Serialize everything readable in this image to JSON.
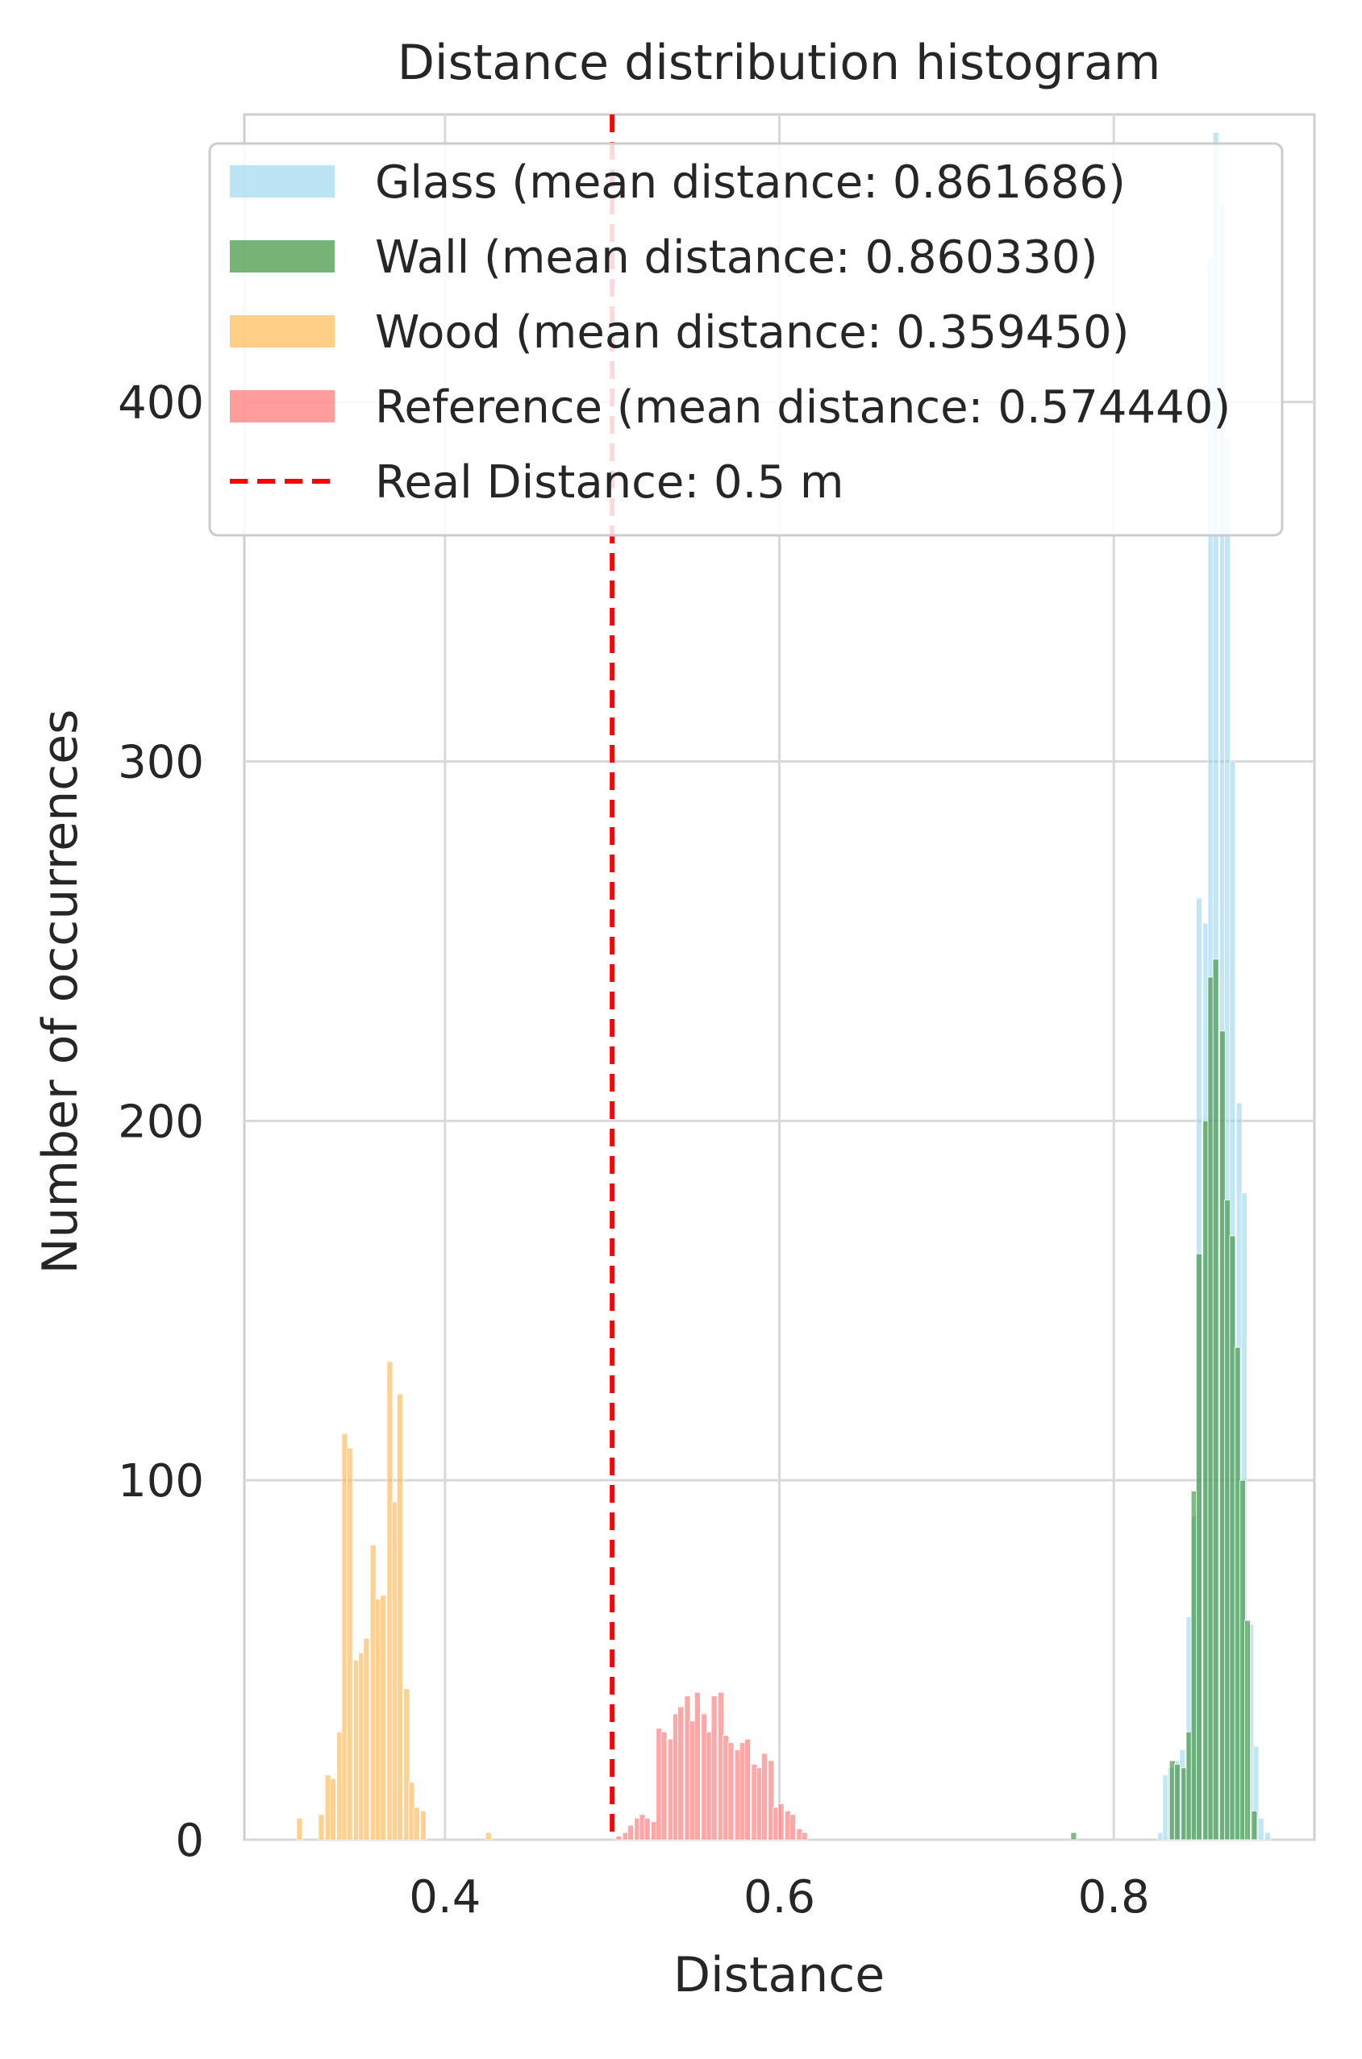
{
  "chart_data": {
    "type": "histogram",
    "title": "Distance distribution histogram",
    "xlabel": "Distance",
    "ylabel": "Number of occurrences",
    "xlim": [
      0.28,
      0.92
    ],
    "ylim": [
      0,
      480
    ],
    "xticks": [
      0.4,
      0.6,
      0.8
    ],
    "xtick_labels": [
      "0.4",
      "0.6",
      "0.8"
    ],
    "yticks": [
      0,
      100,
      200,
      300,
      400
    ],
    "ytick_labels": [
      "0",
      "100",
      "200",
      "300",
      "400"
    ],
    "grid": true,
    "legend_position": "top-right",
    "bin_width": 0.0034,
    "series": [
      {
        "name": "Glass (mean distance: 0.861686)",
        "color": "#87ceeb",
        "opacity": 0.5,
        "bins": [
          [
            0.828,
            2
          ],
          [
            0.831,
            18
          ],
          [
            0.834,
            20
          ],
          [
            0.838,
            22
          ],
          [
            0.841,
            25
          ],
          [
            0.845,
            62
          ],
          [
            0.848,
            90
          ],
          [
            0.851,
            262
          ],
          [
            0.855,
            255
          ],
          [
            0.858,
            440
          ],
          [
            0.861,
            475
          ],
          [
            0.865,
            455
          ],
          [
            0.868,
            390
          ],
          [
            0.871,
            300
          ],
          [
            0.875,
            205
          ],
          [
            0.878,
            180
          ],
          [
            0.882,
            60
          ],
          [
            0.885,
            26
          ],
          [
            0.888,
            6
          ],
          [
            0.892,
            2
          ]
        ]
      },
      {
        "name": "Wall (mean distance: 0.860330)",
        "color": "#2e8b2e",
        "opacity": 0.6,
        "bins": [
          [
            0.776,
            2
          ],
          [
            0.835,
            22
          ],
          [
            0.838,
            21
          ],
          [
            0.842,
            20
          ],
          [
            0.845,
            30
          ],
          [
            0.848,
            97
          ],
          [
            0.851,
            163
          ],
          [
            0.855,
            200
          ],
          [
            0.858,
            240
          ],
          [
            0.861,
            245
          ],
          [
            0.865,
            225
          ],
          [
            0.868,
            178
          ],
          [
            0.871,
            168
          ],
          [
            0.874,
            137
          ],
          [
            0.877,
            100
          ],
          [
            0.88,
            61
          ],
          [
            0.884,
            8
          ]
        ]
      },
      {
        "name": "Wood (mean distance: 0.359450)",
        "color": "#ffb347",
        "opacity": 0.6,
        "bins": [
          [
            0.313,
            6
          ],
          [
            0.326,
            7
          ],
          [
            0.33,
            18
          ],
          [
            0.333,
            17
          ],
          [
            0.337,
            30
          ],
          [
            0.34,
            113
          ],
          [
            0.343,
            109
          ],
          [
            0.347,
            50
          ],
          [
            0.35,
            52
          ],
          [
            0.353,
            56
          ],
          [
            0.357,
            82
          ],
          [
            0.36,
            67
          ],
          [
            0.363,
            68
          ],
          [
            0.367,
            133
          ],
          [
            0.37,
            94
          ],
          [
            0.373,
            124
          ],
          [
            0.377,
            42
          ],
          [
            0.38,
            16
          ],
          [
            0.383,
            9
          ],
          [
            0.387,
            8
          ],
          [
            0.426,
            2
          ]
        ]
      },
      {
        "name": "Reference (mean distance: 0.574440)",
        "color": "#ff4d4d",
        "opacity": 0.5,
        "bins": [
          [
            0.504,
            1
          ],
          [
            0.508,
            2
          ],
          [
            0.511,
            4
          ],
          [
            0.515,
            6
          ],
          [
            0.518,
            7
          ],
          [
            0.521,
            6
          ],
          [
            0.525,
            5
          ],
          [
            0.528,
            31
          ],
          [
            0.531,
            30
          ],
          [
            0.535,
            28
          ],
          [
            0.538,
            35
          ],
          [
            0.541,
            37
          ],
          [
            0.545,
            40
          ],
          [
            0.548,
            33
          ],
          [
            0.551,
            41
          ],
          [
            0.555,
            35
          ],
          [
            0.558,
            30
          ],
          [
            0.561,
            40
          ],
          [
            0.565,
            41
          ],
          [
            0.568,
            29
          ],
          [
            0.571,
            27
          ],
          [
            0.575,
            25
          ],
          [
            0.578,
            27
          ],
          [
            0.581,
            28
          ],
          [
            0.585,
            21
          ],
          [
            0.588,
            20
          ],
          [
            0.591,
            24
          ],
          [
            0.595,
            22
          ],
          [
            0.598,
            9
          ],
          [
            0.601,
            10
          ],
          [
            0.605,
            8
          ],
          [
            0.608,
            7
          ],
          [
            0.612,
            3
          ],
          [
            0.615,
            2
          ]
        ]
      }
    ],
    "reference_line": {
      "name": "Real Distance: 0.5 m",
      "x": 0.5,
      "color": "#ff0000",
      "style": "dashed"
    }
  }
}
